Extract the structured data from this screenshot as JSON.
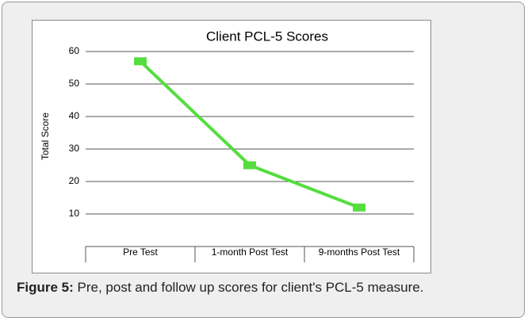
{
  "chart_data": {
    "type": "line",
    "title": "Client PCL-5 Scores",
    "y_label": "Total Score",
    "categories": [
      "Pre Test",
      "1-month Post Test",
      "9-months Post Test"
    ],
    "series": [
      {
        "name": "Total Score",
        "color": "#55dd3f",
        "values": [
          57,
          25,
          12
        ]
      }
    ],
    "ylim": [
      0,
      60
    ],
    "yticks": [
      10,
      20,
      30,
      40,
      50,
      60
    ],
    "grid": true
  },
  "caption": {
    "label": "Figure 5:",
    "text": " Pre, post and follow up scores for client's PCL-5 measure."
  }
}
